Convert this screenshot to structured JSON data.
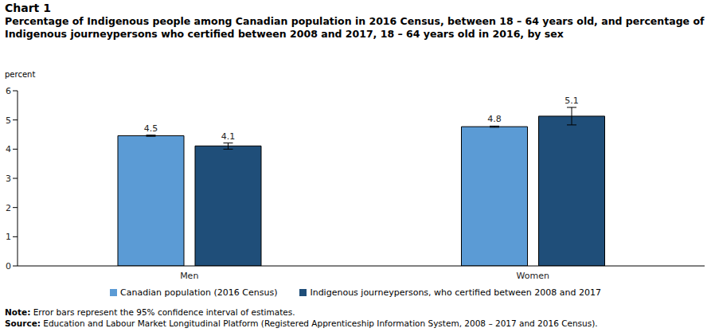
{
  "chart_data": {
    "type": "bar",
    "title": "Chart 1",
    "subtitle": "Percentage of Indigenous people among Canadian population in 2016 Census, between 18 – 64 years old, and percentage of Indigenous journeypersons who certified between 2008 and 2017, 18 – 64 years old in 2016, by sex",
    "y_label": "percent",
    "categories": [
      "Men",
      "Women"
    ],
    "series": [
      {
        "name": "Canadian population (2016 Census)",
        "color": "#5b9bd5",
        "values": [
          4.46,
          4.77
        ],
        "value_labels": [
          "4.5",
          "4.8"
        ],
        "ci": [
          [
            4.44,
            4.48
          ],
          [
            4.75,
            4.79
          ]
        ]
      },
      {
        "name": "Indigenous journeypersons, who certified between 2008 and 2017",
        "color": "#1f4e79",
        "values": [
          4.11,
          5.13
        ],
        "value_labels": [
          "4.1",
          "5.1"
        ],
        "ci": [
          [
            4.0,
            4.21
          ],
          [
            4.83,
            5.43
          ]
        ]
      }
    ],
    "ylim": [
      0,
      6
    ],
    "yticks": [
      0,
      1,
      2,
      3,
      4,
      5,
      6
    ],
    "grid": false,
    "data_labels": true,
    "annotations": [
      "Note: Error bars represent the 95% confidence interval of estimates.",
      "Source: Education and Labour Market Longitudinal Platform (Registered Apprenticeship Information System, 2008 – 2017 and 2016 Census)."
    ]
  }
}
